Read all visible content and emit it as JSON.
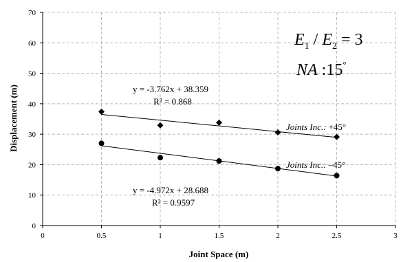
{
  "chart_data": {
    "type": "scatter",
    "xlabel": "Joint Space (m)",
    "ylabel": "Displacement (m)",
    "xlim": [
      0,
      3
    ],
    "ylim": [
      0,
      70
    ],
    "xticks": [
      0,
      0.5,
      1,
      1.5,
      2,
      2.5,
      3
    ],
    "xtick_labels": [
      "0",
      "0.5",
      "1",
      "1.5",
      "2",
      "2.5",
      "3"
    ],
    "yticks": [
      0,
      10,
      20,
      30,
      40,
      50,
      60,
      70
    ],
    "ytick_labels": [
      "0",
      "10",
      "20",
      "30",
      "40",
      "50",
      "60",
      "70"
    ],
    "grid": "dashed, both axes",
    "legend": "none",
    "series": [
      {
        "label_prefix": "Joints Inc.:",
        "label_angle": "+45°",
        "marker": "diamond",
        "x": [
          0.5,
          1,
          1.5,
          2,
          2.5
        ],
        "y": [
          37.4,
          32.9,
          33.8,
          30.6,
          29.1
        ],
        "trendline": {
          "slope": -3.762,
          "intercept": 38.359
        },
        "equation": "y = -3.762x + 38.359",
        "r2": "R² = 0.868"
      },
      {
        "label_prefix": "Joints Inc.:",
        "label_angle": "–45°",
        "marker": "circle",
        "x": [
          0.5,
          1,
          1.5,
          2,
          2.5
        ],
        "y": [
          27.0,
          22.3,
          21.2,
          18.7,
          16.4
        ],
        "trendline": {
          "slope": -4.972,
          "intercept": 28.688
        },
        "equation": "y = -4.972x + 28.688",
        "r2": "R² = 0.9597"
      }
    ],
    "annotations": {
      "ratio": {
        "E": "E",
        "sub1": "1",
        "slash": " / ",
        "sub2": "2",
        "rhs": " = 3"
      },
      "na": {
        "label": "NA",
        "value": " :15",
        "degree": "°"
      }
    }
  }
}
